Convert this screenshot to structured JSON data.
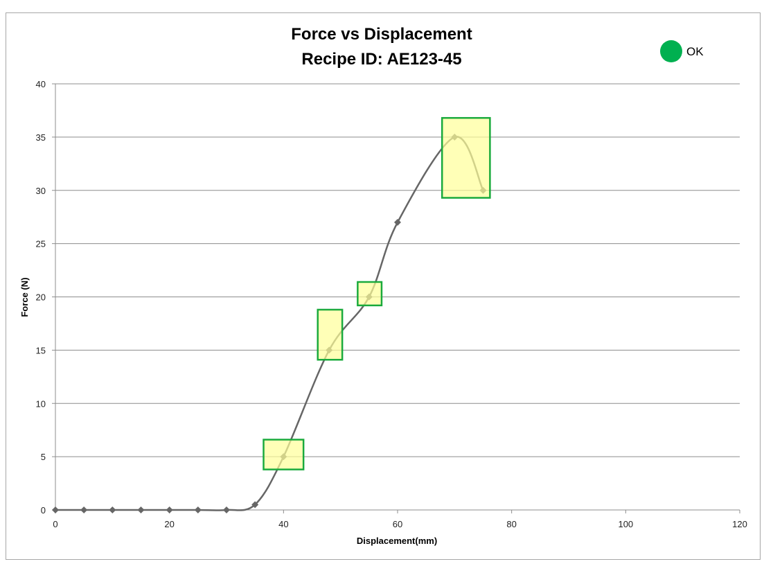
{
  "chart_data": {
    "type": "line",
    "title_lines": [
      "Force  vs Displacement",
      "Recipe ID: AE123-45"
    ],
    "xlabel": "Displacement(mm)",
    "ylabel": "Force (N)",
    "xlim": [
      0,
      120
    ],
    "ylim": [
      0,
      40
    ],
    "x_ticks": [
      0,
      20,
      40,
      60,
      80,
      100,
      120
    ],
    "y_ticks": [
      0,
      5,
      10,
      15,
      20,
      25,
      30,
      35,
      40
    ],
    "grid": "horizontal",
    "series": [
      {
        "color": "#666666",
        "marker": "diamond",
        "smooth": true,
        "x": [
          0,
          5,
          10,
          15,
          20,
          25,
          30,
          35,
          40,
          48,
          55,
          60,
          70,
          75
        ],
        "y": [
          0,
          0,
          0,
          0,
          0,
          0,
          0,
          0.5,
          5,
          15,
          20,
          27,
          35,
          30
        ]
      }
    ],
    "windows": [
      {
        "x": [
          36.5,
          43.5
        ],
        "y": [
          3.8,
          6.6
        ]
      },
      {
        "x": [
          46.0,
          50.3
        ],
        "y": [
          14.1,
          18.8
        ]
      },
      {
        "x": [
          53.0,
          57.2
        ],
        "y": [
          19.2,
          21.4
        ]
      },
      {
        "x": [
          67.8,
          76.2
        ],
        "y": [
          29.3,
          36.8
        ]
      }
    ],
    "window_fill": "#ffff99",
    "window_stroke": "#1aaa3c",
    "status": {
      "label": "OK",
      "color": "#00b050"
    }
  }
}
